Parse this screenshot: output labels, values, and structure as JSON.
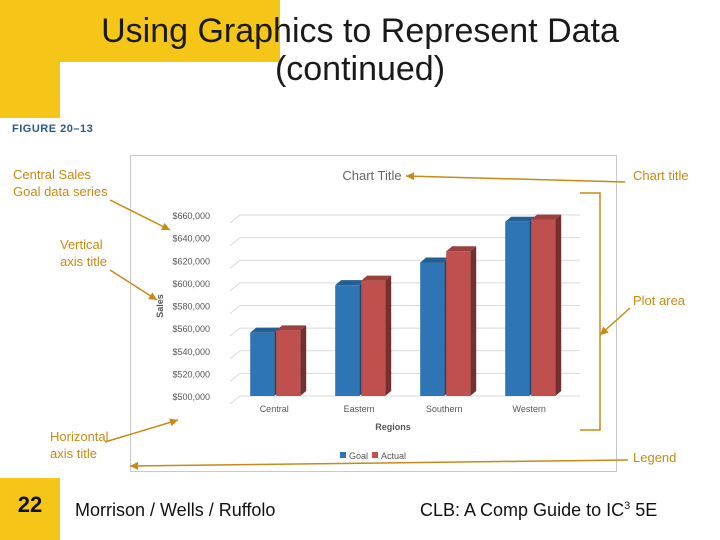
{
  "slide": {
    "title_line1": "Using Graphics to Represent Data",
    "title_line2": "(continued)",
    "figure_label": "FIGURE 20–13",
    "page_number": "22",
    "footer_left": "Morrison / Wells / Ruffolo",
    "footer_right_prefix": "CLB: A Comp Guide to IC",
    "footer_right_sup": "3",
    "footer_right_suffix": " 5E"
  },
  "callouts": {
    "central_sales_1": "Central Sales",
    "central_sales_2": "Goal data series",
    "vertical_axis_1": "Vertical",
    "vertical_axis_2": "axis title",
    "horizontal_axis_1": "Horizontal",
    "horizontal_axis_2": "axis title",
    "chart_title": "Chart title",
    "plot_area": "Plot area",
    "legend": "Legend"
  },
  "colors": {
    "accent_yellow": "#f5c518",
    "callout_orange": "#c88a12",
    "goal_blue": "#2e75b6",
    "actual_red": "#c0504d"
  },
  "chart_data": {
    "type": "bar",
    "title": "Chart Title",
    "xlabel": "Regions",
    "ylabel": "Sales",
    "categories": [
      "Central",
      "Eastern",
      "Southern",
      "Western"
    ],
    "series": [
      {
        "name": "Goal",
        "values": [
          556000,
          598000,
          618000,
          654000
        ]
      },
      {
        "name": "Actual",
        "values": [
          558000,
          602000,
          628000,
          656000
        ]
      }
    ],
    "ylim": [
      500000,
      660000
    ],
    "yticks": [
      "$500,000",
      "$520,000",
      "$540,000",
      "$560,000",
      "$580,000",
      "$600,000",
      "$620,000",
      "$640,000",
      "$660,000"
    ],
    "legend": [
      "Goal",
      "Actual"
    ],
    "legend_position": "bottom"
  }
}
